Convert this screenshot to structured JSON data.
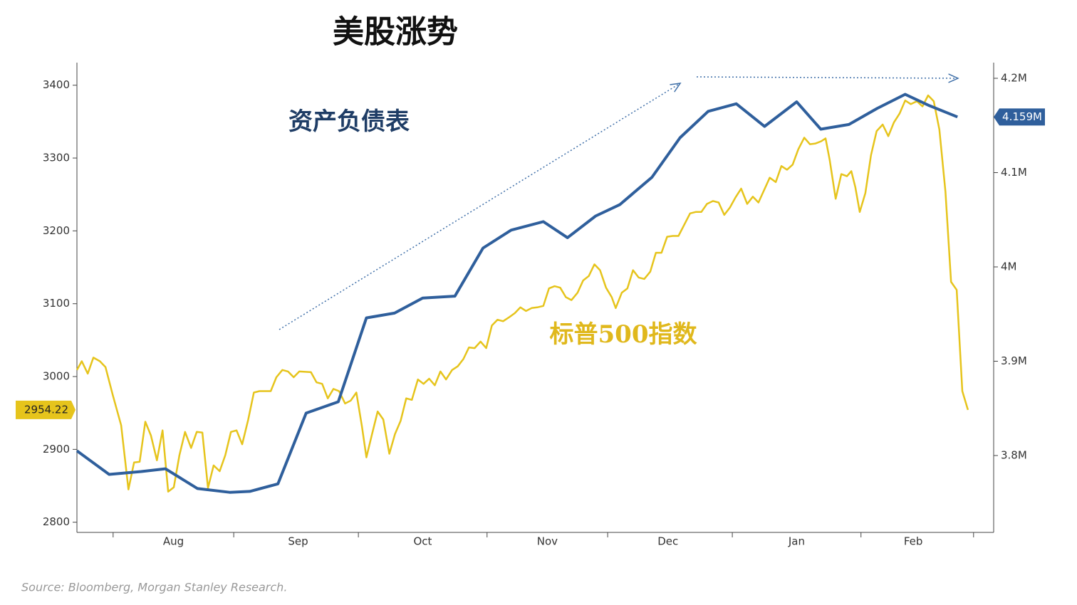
{
  "chart_data": {
    "type": "line",
    "title": "美股涨势",
    "source": "Source: Bloomberg, Morgan Stanley Research.",
    "xlim": [
      0,
      228
    ],
    "xticks": [
      {
        "value": 24,
        "label": "Aug"
      },
      {
        "value": 55,
        "label": "Sep"
      },
      {
        "value": 86,
        "label": "Oct"
      },
      {
        "value": 117,
        "label": "Nov"
      },
      {
        "value": 147,
        "label": "Dec"
      },
      {
        "value": 179,
        "label": "Jan"
      },
      {
        "value": 208,
        "label": "Feb"
      }
    ],
    "xminorticks": [
      9,
      39,
      70,
      102,
      132,
      163,
      195,
      223
    ],
    "ylim": [
      2786,
      3431
    ],
    "yticks": [
      2800,
      2900,
      3000,
      3100,
      3200,
      3300,
      3400
    ],
    "y2lim": [
      3718500,
      4216600
    ],
    "y2ticks": [
      {
        "value": 3800000,
        "label": "3.8M"
      },
      {
        "value": 3900000,
        "label": "3.9M"
      },
      {
        "value": 4000000,
        "label": "4M"
      },
      {
        "value": 4100000,
        "label": "4.1M"
      },
      {
        "value": 4200000,
        "label": "4.2M"
      }
    ],
    "series": [
      {
        "name": "标普500指数",
        "color": "#e6c41c",
        "axis": "y",
        "last_value_label": "2954.22",
        "x": [
          0,
          1.2,
          2.7,
          4.1,
          5.7,
          7.1,
          8.9,
          11.0,
          12.8,
          14.2,
          15.6,
          17.0,
          18.4,
          19.9,
          21.3,
          22.7,
          24.1,
          25.5,
          26.9,
          28.4,
          29.8,
          31.2,
          32.6,
          34.0,
          35.5,
          36.9,
          38.3,
          39.7,
          41.1,
          42.6,
          44.0,
          45.4,
          48.2,
          49.6,
          51.1,
          52.5,
          53.9,
          55.3,
          58.2,
          59.6,
          61.0,
          62.4,
          63.8,
          65.2,
          66.7,
          68.1,
          69.5,
          70.9,
          72.0,
          73.4,
          74.8,
          76.2,
          77.7,
          79.1,
          80.5,
          81.9,
          83.3,
          84.8,
          86.2,
          87.6,
          89.0,
          90.4,
          91.8,
          93.3,
          94.7,
          96.1,
          97.5,
          98.9,
          100.4,
          101.8,
          103.2,
          104.6,
          106.0,
          107.4,
          108.9,
          110.3,
          111.7,
          113.1,
          114.5,
          116.0,
          117.4,
          118.8,
          120.2,
          121.6,
          123.0,
          124.5,
          125.9,
          127.3,
          128.7,
          130.1,
          131.6,
          133.0,
          134.0,
          135.5,
          136.9,
          138.3,
          139.7,
          141.1,
          142.6,
          144.0,
          145.4,
          146.8,
          148.2,
          149.6,
          151.1,
          152.5,
          153.9,
          155.3,
          156.7,
          158.2,
          159.6,
          161.0,
          162.4,
          163.8,
          165.2,
          166.7,
          168.1,
          169.5,
          170.9,
          172.3,
          173.8,
          175.2,
          176.6,
          178.0,
          179.4,
          180.9,
          182.3,
          183.7,
          185.1,
          186.2,
          187.2,
          188.7,
          190.1,
          191.5,
          192.6,
          193.6,
          194.7,
          196.1,
          197.5,
          198.9,
          200.4,
          201.8,
          203.2,
          204.6,
          206.0,
          207.4,
          208.9,
          210.3,
          211.7,
          213.1,
          214.5,
          216.0,
          217.4,
          218.8,
          220.2,
          221.6
        ],
        "values": [
          3009,
          3021,
          3004,
          3026,
          3021,
          3013,
          2975,
          2933,
          2845,
          2882,
          2883,
          2938,
          2919,
          2885,
          2926,
          2842,
          2848,
          2892,
          2924,
          2902,
          2924,
          2923,
          2847,
          2878,
          2870,
          2892,
          2924,
          2926,
          2907,
          2941,
          2978,
          2980,
          2980,
          2999,
          3009,
          3007,
          2999,
          3007,
          3006,
          2992,
          2990,
          2970,
          2983,
          2980,
          2963,
          2967,
          2978,
          2931,
          2889,
          2921,
          2952,
          2941,
          2894,
          2921,
          2939,
          2970,
          2968,
          2996,
          2990,
          2997,
          2988,
          3007,
          2996,
          3009,
          3014,
          3024,
          3040,
          3039,
          3048,
          3039,
          3070,
          3078,
          3076,
          3081,
          3087,
          3095,
          3090,
          3094,
          3095,
          3097,
          3121,
          3124,
          3122,
          3109,
          3105,
          3115,
          3132,
          3138,
          3154,
          3146,
          3122,
          3109,
          3094,
          3115,
          3121,
          3146,
          3136,
          3134,
          3144,
          3170,
          3170,
          3192,
          3193,
          3193,
          3209,
          3224,
          3226,
          3226,
          3237,
          3241,
          3239,
          3222,
          3232,
          3246,
          3258,
          3237,
          3247,
          3239,
          3256,
          3273,
          3267,
          3289,
          3284,
          3291,
          3312,
          3328,
          3319,
          3320,
          3323,
          3327,
          3298,
          3244,
          3278,
          3275,
          3282,
          3260,
          3226,
          3252,
          3304,
          3337,
          3346,
          3330,
          3349,
          3361,
          3379,
          3374,
          3378,
          3371,
          3386,
          3378,
          3339,
          3254,
          3130,
          3119,
          2980,
          2954.22
        ]
      },
      {
        "name": "资产负债表",
        "color": "#2f5f9c",
        "axis": "y2",
        "last_value_label": "4.159M",
        "x": [
          0,
          8,
          16,
          22,
          30,
          38,
          43,
          50,
          57,
          65,
          72,
          79,
          86,
          94,
          101,
          108,
          116,
          122,
          129,
          135,
          143,
          150,
          157,
          164,
          171,
          179,
          185,
          192,
          199,
          206,
          212,
          219
        ],
        "values": [
          3805000,
          3780000,
          3783000,
          3786000,
          3765000,
          3761000,
          3762000,
          3770000,
          3845000,
          3857000,
          3946000,
          3951000,
          3967000,
          3969000,
          4020000,
          4039000,
          4048000,
          4031000,
          4054000,
          4066000,
          4095000,
          4137000,
          4165000,
          4173000,
          4149000,
          4175000,
          4146000,
          4151000,
          4168000,
          4183000,
          4171000,
          4159000
        ]
      }
    ]
  }
}
